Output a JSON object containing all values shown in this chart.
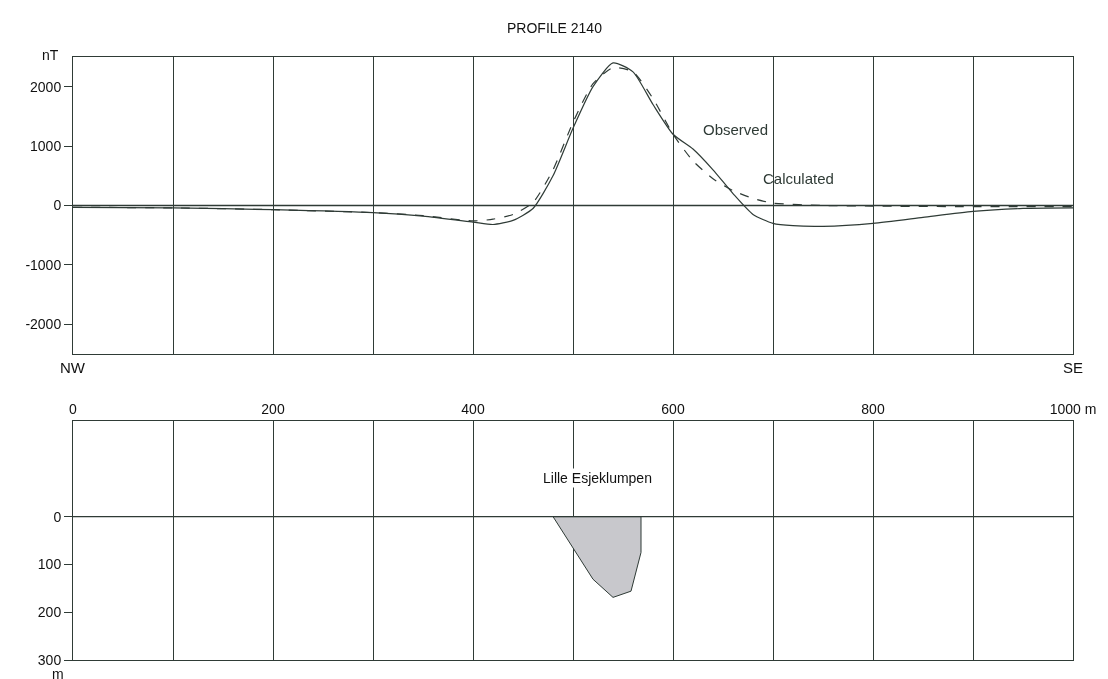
{
  "chart_data": [
    {
      "type": "line",
      "title": "PROFILE 2140",
      "ylabel": "nT",
      "annotations": [
        "NW",
        "SE"
      ],
      "series": [
        {
          "name": "Observed",
          "color": "#2f3b36",
          "line_style": "solid",
          "x": [
            0,
            100,
            200,
            300,
            350,
            400,
            420,
            440,
            460,
            480,
            500,
            520,
            540,
            560,
            580,
            600,
            620,
            640,
            660,
            680,
            700,
            720,
            750,
            800,
            850,
            900,
            950,
            1000
          ],
          "values": [
            -30,
            -40,
            -70,
            -120,
            -180,
            -280,
            -320,
            -250,
            -50,
            500,
            1300,
            2000,
            2400,
            2250,
            1700,
            1200,
            950,
            600,
            200,
            -150,
            -300,
            -340,
            -350,
            -300,
            -200,
            -100,
            -50,
            -40
          ]
        },
        {
          "name": "Calculated",
          "color": "#2f3b36",
          "line_style": "dashed",
          "x": [
            0,
            100,
            200,
            300,
            350,
            400,
            420,
            440,
            460,
            480,
            500,
            520,
            540,
            560,
            580,
            600,
            620,
            640,
            660,
            680,
            700,
            750,
            800,
            900,
            1000
          ],
          "values": [
            -30,
            -40,
            -70,
            -120,
            -170,
            -260,
            -230,
            -150,
            50,
            600,
            1400,
            2050,
            2320,
            2250,
            1800,
            1200,
            750,
            450,
            250,
            120,
            40,
            0,
            -10,
            -20,
            -20
          ]
        }
      ],
      "xlim": [
        0,
        1000
      ],
      "xticks": [
        {
          "value": 0,
          "label": null
        },
        {
          "value": 100,
          "label": null
        },
        {
          "value": 200,
          "label": null
        },
        {
          "value": 300,
          "label": null
        },
        {
          "value": 400,
          "label": null
        },
        {
          "value": 500,
          "label": null
        },
        {
          "value": 600,
          "label": null
        },
        {
          "value": 700,
          "label": null
        },
        {
          "value": 800,
          "label": null
        },
        {
          "value": 900,
          "label": null
        },
        {
          "value": 1000,
          "label": null
        }
      ],
      "ylim": [
        -2500,
        2500
      ],
      "yticks": [
        -2000,
        -1000,
        0,
        1000,
        2000
      ],
      "ref_lines": [
        {
          "axis": "y",
          "value": 0,
          "color": "#2f3b36"
        }
      ],
      "grid": "x",
      "legend": false,
      "tick_labels": "y"
    },
    {
      "type": "area",
      "ylabel": "m",
      "annotations": [
        "Lille Esjeklumpen"
      ],
      "series": [
        {
          "color": "#c8c8cc",
          "x": [
            480,
            568,
            568,
            558,
            540,
            520,
            480
          ],
          "values": [
            0,
            0,
            75,
            156,
            169,
            131,
            0
          ]
        }
      ],
      "xlim": [
        0,
        1000
      ],
      "xticks": [
        0,
        {
          "value": 100,
          "label": null
        },
        200,
        {
          "value": 300,
          "label": null
        },
        400,
        {
          "value": 500,
          "label": null
        },
        600,
        {
          "value": 700,
          "label": null
        },
        800,
        {
          "value": 900,
          "label": null
        },
        {
          "value": 1000,
          "label": "1000 m"
        }
      ],
      "ylim": [
        300,
        -200
      ],
      "yticks": [
        0,
        100,
        200,
        300
      ],
      "ref_lines": [
        {
          "axis": "y",
          "value": 0,
          "color": "#2f3b36"
        }
      ],
      "grid": "x",
      "legend": false
    }
  ]
}
